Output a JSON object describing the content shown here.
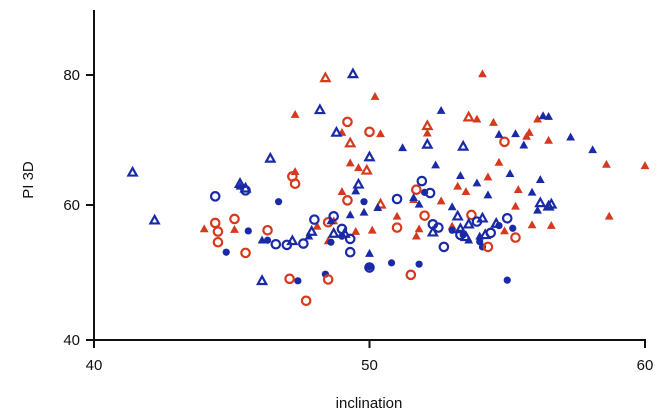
{
  "chart_data": {
    "type": "scatter",
    "xlabel": "inclination",
    "ylabel": "PI 3D",
    "xlim": [
      40,
      60
    ],
    "ylim": [
      40,
      90
    ],
    "x_ticks": [
      "40",
      "50",
      "60"
    ],
    "y_ticks": [
      "40",
      "60",
      "80"
    ],
    "grid": false,
    "legend": "none",
    "colors": {
      "red": "#d63a1e",
      "blue": "#1a2aa6"
    },
    "series": [
      {
        "marker": "filled-triangle",
        "color": "red",
        "points": [
          [
            44.0,
            56.7
          ],
          [
            45.1,
            56.6
          ],
          [
            47.3,
            65.3
          ],
          [
            47.3,
            73.9
          ],
          [
            48.1,
            57.1
          ],
          [
            48.5,
            54.9
          ],
          [
            48.7,
            57.9
          ],
          [
            49.0,
            62.3
          ],
          [
            49.0,
            71.2
          ],
          [
            49.3,
            66.6
          ],
          [
            49.5,
            56.3
          ],
          [
            49.6,
            65.9
          ],
          [
            50.1,
            56.5
          ],
          [
            50.2,
            76.6
          ],
          [
            50.4,
            71.0
          ],
          [
            51.0,
            58.6
          ],
          [
            51.6,
            61.1
          ],
          [
            51.7,
            55.6
          ],
          [
            51.8,
            56.7
          ],
          [
            52.1,
            71.1
          ],
          [
            52.6,
            60.9
          ],
          [
            53.0,
            57.1
          ],
          [
            53.2,
            63.1
          ],
          [
            53.5,
            62.3
          ],
          [
            53.9,
            73.2
          ],
          [
            54.1,
            80.0
          ],
          [
            54.3,
            64.5
          ],
          [
            54.5,
            72.7
          ],
          [
            54.7,
            66.7
          ],
          [
            54.9,
            56.4
          ],
          [
            55.3,
            60.1
          ],
          [
            55.4,
            62.6
          ],
          [
            55.7,
            70.6
          ],
          [
            55.8,
            71.2
          ],
          [
            55.9,
            57.3
          ],
          [
            56.1,
            73.2
          ],
          [
            56.5,
            70.0
          ],
          [
            56.6,
            57.2
          ],
          [
            58.6,
            66.4
          ],
          [
            58.7,
            58.6
          ],
          [
            60.0,
            66.2
          ]
        ]
      },
      {
        "marker": "filled-circle",
        "color": "blue",
        "points": [
          [
            44.8,
            53.2
          ],
          [
            45.6,
            56.4
          ],
          [
            46.3,
            55.0
          ],
          [
            46.7,
            60.8
          ],
          [
            47.4,
            48.9
          ],
          [
            48.4,
            49.9
          ],
          [
            48.6,
            54.7
          ],
          [
            49.0,
            55.6
          ],
          [
            49.8,
            60.8
          ],
          [
            50.0,
            51.0
          ],
          [
            50.8,
            51.6
          ],
          [
            51.8,
            51.4
          ],
          [
            52.0,
            62.2
          ],
          [
            53.0,
            56.5
          ],
          [
            53.4,
            55.8
          ],
          [
            54.0,
            54.8
          ],
          [
            54.1,
            54.0
          ],
          [
            54.7,
            57.2
          ],
          [
            55.0,
            49.0
          ],
          [
            55.2,
            56.8
          ]
        ]
      },
      {
        "marker": "hollow-triangle",
        "color": "red",
        "points": [
          [
            48.4,
            79.4
          ],
          [
            49.3,
            69.6
          ],
          [
            49.9,
            65.5
          ],
          [
            50.4,
            60.4
          ],
          [
            52.1,
            72.2
          ],
          [
            53.6,
            73.5
          ]
        ]
      },
      {
        "marker": "hollow-circle",
        "color": "red",
        "points": [
          [
            44.4,
            57.6
          ],
          [
            44.5,
            56.3
          ],
          [
            44.5,
            54.7
          ],
          [
            45.1,
            58.2
          ],
          [
            45.5,
            53.1
          ],
          [
            46.3,
            56.5
          ],
          [
            47.1,
            49.2
          ],
          [
            47.2,
            64.6
          ],
          [
            47.3,
            63.5
          ],
          [
            47.7,
            45.9
          ],
          [
            48.5,
            49.1
          ],
          [
            48.5,
            57.7
          ],
          [
            49.2,
            72.8
          ],
          [
            49.2,
            61.0
          ],
          [
            50.0,
            71.3
          ],
          [
            51.0,
            56.9
          ],
          [
            51.5,
            49.8
          ],
          [
            51.7,
            62.6
          ],
          [
            52.0,
            58.7
          ],
          [
            53.7,
            58.8
          ],
          [
            54.3,
            54.0
          ],
          [
            54.9,
            69.8
          ],
          [
            55.3,
            55.4
          ]
        ]
      },
      {
        "marker": "hollow-triangle",
        "color": "blue",
        "points": [
          [
            41.4,
            65.2
          ],
          [
            42.2,
            58.0
          ],
          [
            45.3,
            63.5
          ],
          [
            45.5,
            62.8
          ],
          [
            46.1,
            48.9
          ],
          [
            46.4,
            67.3
          ],
          [
            47.2,
            54.9
          ],
          [
            47.9,
            56.3
          ],
          [
            48.2,
            74.6
          ],
          [
            48.7,
            56.0
          ],
          [
            48.8,
            71.2
          ],
          [
            49.1,
            56.0
          ],
          [
            49.4,
            80.0
          ],
          [
            49.6,
            63.4
          ],
          [
            50.0,
            67.5
          ],
          [
            52.1,
            69.4
          ],
          [
            52.3,
            56.2
          ],
          [
            53.2,
            58.6
          ],
          [
            53.3,
            56.7
          ],
          [
            53.4,
            69.1
          ],
          [
            53.5,
            55.5
          ],
          [
            53.6,
            57.4
          ],
          [
            54.1,
            58.3
          ],
          [
            54.2,
            55.8
          ],
          [
            54.6,
            57.5
          ],
          [
            56.2,
            60.6
          ],
          [
            56.5,
            60.1
          ],
          [
            56.6,
            60.4
          ]
        ]
      },
      {
        "marker": "hollow-circle",
        "color": "blue",
        "points": [
          [
            44.4,
            61.6
          ],
          [
            45.5,
            62.5
          ],
          [
            46.6,
            54.4
          ],
          [
            47.0,
            54.3
          ],
          [
            47.6,
            54.5
          ],
          [
            48.0,
            58.1
          ],
          [
            48.7,
            58.6
          ],
          [
            49.0,
            56.7
          ],
          [
            49.3,
            55.2
          ],
          [
            49.3,
            53.2
          ],
          [
            50.0,
            50.9
          ],
          [
            51.0,
            61.2
          ],
          [
            51.9,
            63.9
          ],
          [
            52.2,
            62.1
          ],
          [
            52.3,
            57.4
          ],
          [
            52.5,
            56.9
          ],
          [
            52.7,
            54.0
          ],
          [
            53.3,
            55.8
          ],
          [
            53.9,
            57.8
          ],
          [
            54.4,
            56.1
          ],
          [
            55.0,
            58.3
          ]
        ]
      },
      {
        "marker": "filled-triangle",
        "color": "blue",
        "points": [
          [
            45.3,
            63.1
          ],
          [
            46.1,
            55.0
          ],
          [
            47.8,
            55.6
          ],
          [
            48.6,
            57.9
          ],
          [
            49.3,
            58.8
          ],
          [
            49.5,
            62.4
          ],
          [
            49.8,
            59.2
          ],
          [
            50.0,
            53.0
          ],
          [
            50.3,
            59.9
          ],
          [
            51.2,
            68.9
          ],
          [
            51.6,
            61.4
          ],
          [
            51.8,
            60.4
          ],
          [
            52.4,
            66.3
          ],
          [
            52.6,
            74.5
          ],
          [
            53.0,
            60.0
          ],
          [
            53.3,
            64.7
          ],
          [
            53.6,
            55.0
          ],
          [
            53.9,
            63.6
          ],
          [
            54.0,
            55.6
          ],
          [
            54.3,
            61.8
          ],
          [
            54.7,
            70.9
          ],
          [
            55.1,
            65.0
          ],
          [
            55.3,
            71.0
          ],
          [
            55.6,
            69.3
          ],
          [
            55.9,
            62.2
          ],
          [
            56.1,
            59.5
          ],
          [
            56.2,
            64.1
          ],
          [
            56.3,
            73.7
          ],
          [
            56.5,
            73.6
          ],
          [
            57.3,
            70.5
          ],
          [
            58.1,
            68.6
          ]
        ]
      }
    ]
  }
}
